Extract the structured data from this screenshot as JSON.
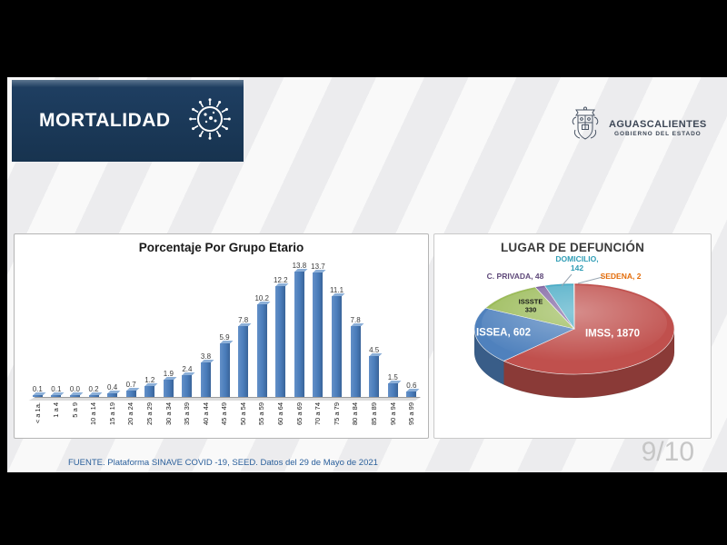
{
  "banner": {
    "title": "MORTALIDAD",
    "icon": "virus-icon",
    "bg_color": "#17334f"
  },
  "logo": {
    "name": "AGUASCALIENTES",
    "subtitle": "GOBIERNO DEL ESTADO",
    "icon": "state-crest-icon",
    "color": "#3d4756"
  },
  "footer": {
    "source": "FUENTE. Plataforma SINAVE COVID -19, SEED. Datos del 29 de Mayo de 2021",
    "page": "9/10"
  },
  "chart_data": [
    {
      "type": "bar",
      "title": "Porcentaje Por Grupo Etario",
      "categories": [
        "< a 1a.",
        "1 a 4",
        "5 a 9",
        "10 a 14",
        "15 a 19",
        "20 a 24",
        "25 a 29",
        "30 a 34",
        "35 a 39",
        "40 a 44",
        "45 a 49",
        "50 a 54",
        "55 a 59",
        "60 a 64",
        "65 a 69",
        "70 a 74",
        "75 a 79",
        "80 a 84",
        "85 a 89",
        "90 a 94",
        "95 a 99"
      ],
      "values": [
        0.1,
        0.1,
        0.0,
        0.2,
        0.4,
        0.7,
        1.2,
        1.9,
        2.4,
        3.8,
        5.9,
        7.8,
        10.2,
        12.2,
        13.8,
        13.7,
        11.1,
        7.8,
        4.5,
        1.5,
        0.6
      ],
      "xlabel": "",
      "ylabel": "",
      "ylim": [
        0,
        14.5
      ],
      "grid": false,
      "value_labels": true,
      "effect": "3d",
      "bar_color": "#4a7cba"
    },
    {
      "type": "pie",
      "title": "LUGAR DE DEFUNCIÓN",
      "effect": "3d",
      "series": [
        {
          "name": "IMSS",
          "value": 1870,
          "color": "#c0504d",
          "label": "IMSS, 1870",
          "label_color": "#ffffff",
          "label_pos": "inside"
        },
        {
          "name": "ISSEA",
          "value": 602,
          "color": "#4f81bd",
          "label": "ISSEA, 602",
          "label_color": "#ffffff",
          "label_pos": "inside"
        },
        {
          "name": "ISSSTE",
          "value": 330,
          "color": "#9bbb59",
          "label_lines": [
            "ISSSTE",
            "330"
          ],
          "label_color": "#1a1a1a",
          "label_pos": "inside"
        },
        {
          "name": "C. PRIVADA",
          "value": 48,
          "color": "#8064a2",
          "label": "C. PRIVADA, 48",
          "label_color": "#5f497a",
          "label_pos": "outside"
        },
        {
          "name": "DOMICILIO",
          "value": 142,
          "color": "#4bacc6",
          "label_lines": [
            "DOMICILIO,",
            "142"
          ],
          "label_color": "#2f9db5",
          "label_pos": "outside"
        },
        {
          "name": "SEDENA",
          "value": 2,
          "color": "#f79646",
          "label": "SEDENA, 2",
          "label_color": "#e36c09",
          "label_pos": "outside"
        }
      ]
    }
  ]
}
